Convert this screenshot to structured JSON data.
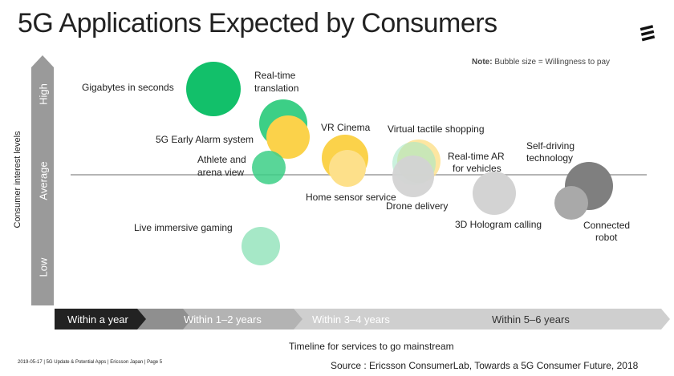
{
  "title": "5G Applications Expected by Consumers",
  "note": {
    "label": "Note:",
    "text": "Bubble size = Willingness to pay"
  },
  "colors": {
    "green_dark": "#12c06a",
    "green_mid": "#3ccf86",
    "green_light": "#a6e8c7",
    "yellow": "#fbd24a",
    "yellow_light": "#fde08a",
    "gray_light": "#d3d3d3",
    "gray_mid": "#a9a9a9",
    "gray_dark": "#7f7f7f",
    "arrow_gray": "#9a9a9a"
  },
  "chart_data": {
    "type": "bubble",
    "y_axis": {
      "label": "Consumer interest levels",
      "ticks": [
        "Low",
        "Average",
        "High"
      ]
    },
    "x_axis": {
      "label": "Timeline for services to go mainstream",
      "categories": [
        "Within a year",
        "Within 1–2 years",
        "Within 3–4 years",
        "Within 5–6 years"
      ]
    },
    "bubbles": [
      {
        "name": "Gigabytes in seconds",
        "timeline": "Within 1–2 years",
        "interest": "High",
        "color": "green_dark"
      },
      {
        "name": "Real-time translation",
        "timeline": "Within 1–2 years",
        "interest": "Average-High",
        "color": "green_mid"
      },
      {
        "name": "5G Early Alarm system",
        "timeline": "Within 1–2 years",
        "interest": "Average-High",
        "color": "yellow"
      },
      {
        "name": "Athlete and arena view",
        "timeline": "Within 1–2 years",
        "interest": "Average",
        "color": "green_mid"
      },
      {
        "name": "Live immersive gaming",
        "timeline": "Within 1–2 years",
        "interest": "Low-Average",
        "color": "green_light"
      },
      {
        "name": "VR Cinema",
        "timeline": "Within 3–4 years",
        "interest": "Average",
        "color": "yellow"
      },
      {
        "name": "Home sensor service",
        "timeline": "Within 3–4 years",
        "interest": "Average",
        "color": "yellow_light"
      },
      {
        "name": "Virtual tactile shopping",
        "timeline": "Within 3–4 years",
        "interest": "Average",
        "color": "green_light"
      },
      {
        "name": "Drone delivery",
        "timeline": "Within 3–4 years",
        "interest": "Average",
        "color": "gray_light"
      },
      {
        "name": "Real-time AR for vehicles",
        "timeline": "Within 5–6 years",
        "interest": "Average",
        "color": "gray_light"
      },
      {
        "name": "3D Hologram calling",
        "timeline": "Within 5–6 years",
        "interest": "Average",
        "color": "gray_light"
      },
      {
        "name": "Self-driving technology",
        "timeline": "Within 5–6 years",
        "interest": "Average",
        "color": "gray_dark"
      },
      {
        "name": "Connected robot",
        "timeline": "Within 5–6 years",
        "interest": "Average",
        "color": "gray_mid"
      }
    ],
    "labels": {
      "gigabytes": "Gigabytes in seconds",
      "translation_1": "Real-time",
      "translation_2": "translation",
      "alarm": "5G Early Alarm system",
      "athlete_1": "Athlete and",
      "athlete_2": "arena view",
      "gaming": "Live immersive gaming",
      "vr": "VR Cinema",
      "home": "Home sensor service",
      "tactile": "Virtual tactile shopping",
      "drone": "Drone delivery",
      "ar_1": "Real-time AR",
      "ar_2": "for vehicles",
      "hologram": "3D Hologram calling",
      "selfdrive_1": "Self-driving",
      "selfdrive_2": "technology",
      "robot_1": "Connected",
      "robot_2": "robot"
    }
  },
  "footer": "2019-05-17  |  5G Update & Potential Apps  |  Ericsson Japan  |  Page 5",
  "source": "Source : Ericsson ConsumerLab, Towards a 5G Consumer Future, 2018"
}
